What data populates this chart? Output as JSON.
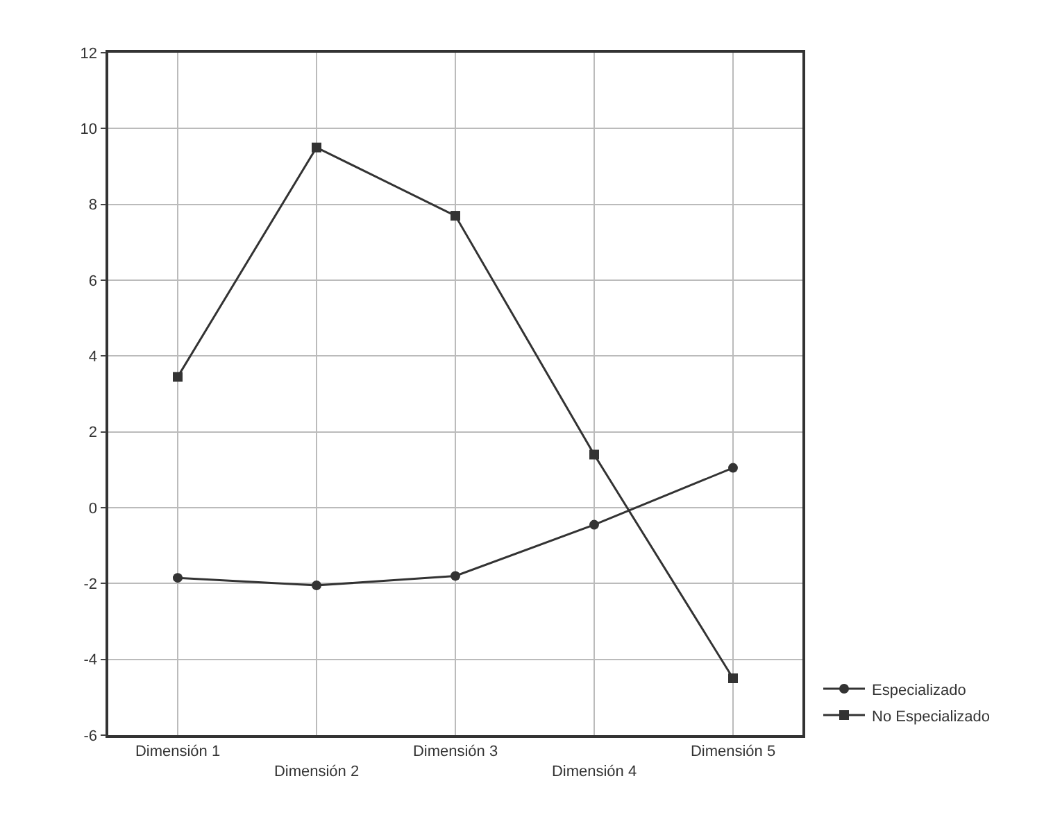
{
  "chart_data": {
    "type": "line",
    "categories": [
      "Dimensión 1",
      "Dimensión 2",
      "Dimensión 3",
      "Dimensión 4",
      "Dimensión 5"
    ],
    "series": [
      {
        "name": "Especializado",
        "color": "#333333",
        "marker": "circle",
        "values": [
          -1.85,
          -2.05,
          -1.8,
          -0.45,
          1.05
        ]
      },
      {
        "name": "No Especializado",
        "color": "#333333",
        "marker": "square",
        "values": [
          3.45,
          9.5,
          7.7,
          1.4,
          -4.5
        ]
      }
    ],
    "ylim": [
      -6,
      12
    ],
    "yticks": [
      -6,
      -4,
      -2,
      0,
      2,
      4,
      6,
      8,
      10,
      12
    ],
    "grid": true,
    "legend": "bottom right",
    "line_style": "solid"
  }
}
